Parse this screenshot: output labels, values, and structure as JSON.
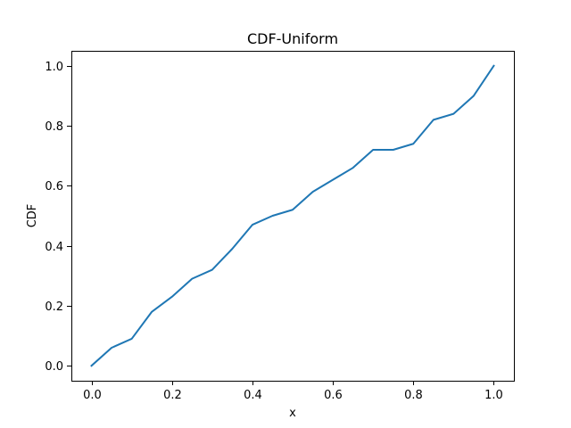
{
  "chart_data": {
    "type": "line",
    "title": "CDF-Uniform",
    "xlabel": "x",
    "ylabel": "CDF",
    "xlim": [
      -0.05,
      1.05
    ],
    "ylim": [
      -0.05,
      1.05
    ],
    "xticks": [
      0.0,
      0.2,
      0.4,
      0.6,
      0.8,
      1.0
    ],
    "yticks": [
      0.0,
      0.2,
      0.4,
      0.6,
      0.8,
      1.0
    ],
    "xtick_labels": [
      "0.0",
      "0.2",
      "0.4",
      "0.6",
      "0.8",
      "1.0"
    ],
    "ytick_labels": [
      "0.0",
      "0.2",
      "0.4",
      "0.6",
      "0.8",
      "1.0"
    ],
    "grid": false,
    "color": "#1f77b4",
    "series": [
      {
        "x": [
          0.0,
          0.05,
          0.1,
          0.15,
          0.2,
          0.25,
          0.3,
          0.35,
          0.4,
          0.45,
          0.5,
          0.55,
          0.6,
          0.65,
          0.7,
          0.75,
          0.8,
          0.85,
          0.9,
          0.95,
          1.0
        ],
        "y": [
          0.0,
          0.06,
          0.09,
          0.18,
          0.23,
          0.29,
          0.32,
          0.39,
          0.47,
          0.5,
          0.52,
          0.58,
          0.62,
          0.66,
          0.72,
          0.72,
          0.74,
          0.82,
          0.84,
          0.9,
          1.0
        ]
      }
    ]
  }
}
